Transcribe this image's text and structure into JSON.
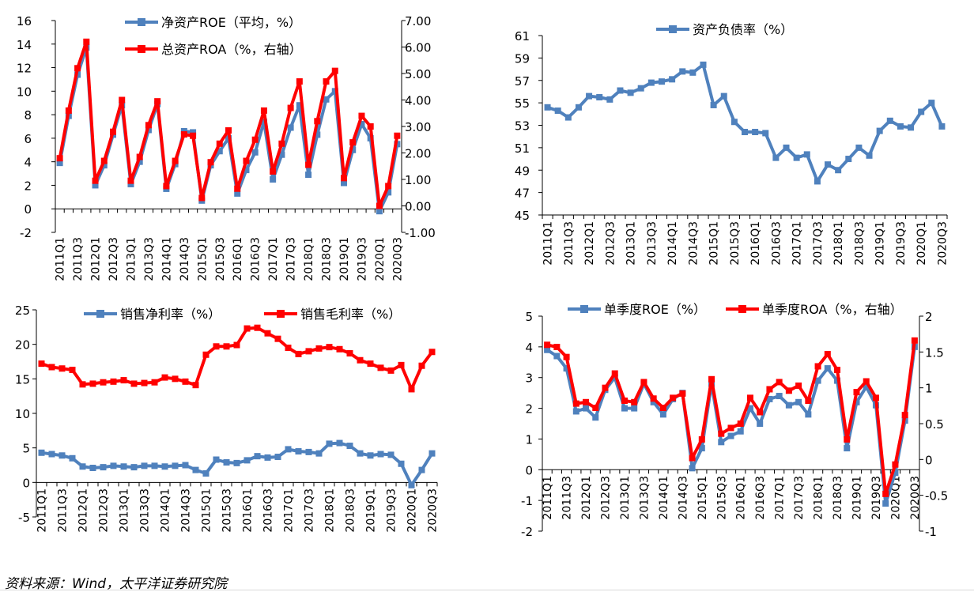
{
  "source_note": "资料来源：Wind，太平洋证券研究院",
  "chart_data": [
    {
      "id": "roe_roa",
      "type": "line",
      "categories": [
        "2011Q1",
        "2011Q2",
        "2011Q3",
        "2011Q4",
        "2012Q1",
        "2012Q2",
        "2012Q3",
        "2012Q4",
        "2013Q1",
        "2013Q2",
        "2013Q3",
        "2013Q4",
        "2014Q1",
        "2014Q2",
        "2014Q3",
        "2014Q4",
        "2015Q1",
        "2015Q2",
        "2015Q3",
        "2015Q4",
        "2016Q1",
        "2016Q2",
        "2016Q3",
        "2016Q4",
        "2017Q1",
        "2017Q2",
        "2017Q3",
        "2017Q4",
        "2018Q1",
        "2018Q2",
        "2018Q3",
        "2018Q4",
        "2019Q1",
        "2019Q2",
        "2019Q3",
        "2019Q4",
        "2020Q1",
        "2020Q2",
        "2020Q3"
      ],
      "tick_labels": [
        "2011Q1",
        "2011Q3",
        "2012Q1",
        "2012Q3",
        "2013Q1",
        "2013Q3",
        "2014Q1",
        "2014Q3",
        "2015Q1",
        "2015Q3",
        "2016Q1",
        "2016Q3",
        "2017Q1",
        "2017Q3",
        "2018Q1",
        "2018Q3",
        "2019Q1",
        "2019Q3",
        "2020Q1",
        "2020Q3"
      ],
      "ylim": [
        -2,
        16
      ],
      "yticks": [
        "-2",
        "0",
        "2",
        "4",
        "6",
        "8",
        "10",
        "12",
        "14",
        "16"
      ],
      "y2lim": [
        -1,
        7
      ],
      "y2ticks": [
        "-1.00",
        "0.00",
        "1.00",
        "2.00",
        "3.00",
        "4.00",
        "5.00",
        "6.00",
        "7.00"
      ],
      "series": [
        {
          "name": "净资产ROE（平均，%）",
          "color": "#4f81bd",
          "axis": "left",
          "values": [
            3.9,
            7.9,
            11.4,
            13.7,
            2.0,
            3.7,
            6.3,
            8.8,
            2.1,
            4.0,
            6.7,
            8.9,
            1.7,
            3.8,
            6.6,
            6.5,
            0.7,
            3.7,
            4.9,
            6.0,
            1.3,
            3.3,
            4.8,
            7.4,
            2.5,
            4.6,
            6.9,
            8.8,
            2.9,
            6.3,
            9.3,
            10.0,
            2.2,
            5.0,
            7.2,
            6.0,
            -0.2,
            1.4,
            5.5
          ]
        },
        {
          "name": "总资产ROA（%，右轴）",
          "color": "#ff0000",
          "axis": "right",
          "values": [
            1.8,
            3.6,
            5.2,
            6.2,
            0.95,
            1.7,
            2.8,
            4.0,
            0.95,
            1.85,
            3.05,
            3.95,
            0.75,
            1.7,
            2.7,
            2.65,
            0.3,
            1.65,
            2.35,
            2.85,
            0.65,
            1.7,
            2.5,
            3.6,
            1.3,
            2.35,
            3.7,
            4.7,
            1.55,
            3.2,
            4.7,
            5.1,
            1.05,
            2.4,
            3.4,
            3.0,
            0.0,
            0.75,
            2.65
          ]
        }
      ]
    },
    {
      "id": "debt_ratio",
      "type": "line",
      "categories": [
        "2011Q1",
        "2011Q2",
        "2011Q3",
        "2011Q4",
        "2012Q1",
        "2012Q2",
        "2012Q3",
        "2012Q4",
        "2013Q1",
        "2013Q2",
        "2013Q3",
        "2013Q4",
        "2014Q1",
        "2014Q2",
        "2014Q3",
        "2014Q4",
        "2015Q1",
        "2015Q2",
        "2015Q3",
        "2015Q4",
        "2016Q1",
        "2016Q2",
        "2016Q3",
        "2016Q4",
        "2017Q1",
        "2017Q2",
        "2017Q3",
        "2017Q4",
        "2018Q1",
        "2018Q2",
        "2018Q3",
        "2018Q4",
        "2019Q1",
        "2019Q2",
        "2019Q3",
        "2019Q4",
        "2020Q1",
        "2020Q2",
        "2020Q3"
      ],
      "tick_labels": [
        "2011Q1",
        "2011Q3",
        "2012Q1",
        "2012Q3",
        "2013Q1",
        "2013Q3",
        "2014Q1",
        "2014Q3",
        "2015Q1",
        "2015Q3",
        "2016Q1",
        "2016Q3",
        "2017Q1",
        "2017Q3",
        "2018Q1",
        "2018Q3",
        "2019Q1",
        "2019Q3",
        "2020Q1",
        "2020Q3"
      ],
      "ylim": [
        45,
        61
      ],
      "yticks": [
        "45",
        "47",
        "49",
        "51",
        "53",
        "55",
        "57",
        "59",
        "61"
      ],
      "series": [
        {
          "name": "资产负债率（%）",
          "color": "#4f81bd",
          "axis": "left",
          "values": [
            54.6,
            54.3,
            53.7,
            54.6,
            55.6,
            55.5,
            55.3,
            56.1,
            55.9,
            56.3,
            56.8,
            56.9,
            57.1,
            57.8,
            57.7,
            58.4,
            54.8,
            55.6,
            53.3,
            52.4,
            52.4,
            52.3,
            50.1,
            51.0,
            50.1,
            50.4,
            48.0,
            49.5,
            49.0,
            50.0,
            51.0,
            50.3,
            52.5,
            53.4,
            52.9,
            52.8,
            54.2,
            55.0,
            52.9
          ]
        }
      ]
    },
    {
      "id": "margins",
      "type": "line",
      "categories": [
        "2011Q1",
        "2011Q2",
        "2011Q3",
        "2011Q4",
        "2012Q1",
        "2012Q2",
        "2012Q3",
        "2012Q4",
        "2013Q1",
        "2013Q2",
        "2013Q3",
        "2013Q4",
        "2014Q1",
        "2014Q2",
        "2014Q3",
        "2014Q4",
        "2015Q1",
        "2015Q2",
        "2015Q3",
        "2015Q4",
        "2016Q1",
        "2016Q2",
        "2016Q3",
        "2016Q4",
        "2017Q1",
        "2017Q2",
        "2017Q3",
        "2017Q4",
        "2018Q1",
        "2018Q2",
        "2018Q3",
        "2018Q4",
        "2019Q1",
        "2019Q2",
        "2019Q3",
        "2019Q4",
        "2020Q1",
        "2020Q2",
        "2020Q3"
      ],
      "tick_labels": [
        "2011Q1",
        "2011Q3",
        "2012Q1",
        "2012Q3",
        "2013Q1",
        "2013Q3",
        "2014Q1",
        "2014Q3",
        "2015Q1",
        "2015Q3",
        "2016Q1",
        "2016Q3",
        "2017Q1",
        "2017Q3",
        "2018Q1",
        "2018Q3",
        "2019Q1",
        "2019Q3",
        "2020Q1",
        "2020Q3"
      ],
      "ylim": [
        -5,
        25
      ],
      "yticks": [
        "-5",
        "0",
        "5",
        "10",
        "15",
        "20",
        "25"
      ],
      "series": [
        {
          "name": "销售净利率（%）",
          "color": "#4f81bd",
          "axis": "left",
          "values": [
            4.3,
            4.1,
            3.9,
            3.5,
            2.3,
            2.1,
            2.2,
            2.4,
            2.3,
            2.2,
            2.4,
            2.4,
            2.3,
            2.4,
            2.5,
            1.8,
            1.3,
            3.3,
            2.9,
            2.8,
            3.2,
            3.8,
            3.6,
            3.7,
            4.8,
            4.5,
            4.4,
            4.2,
            5.6,
            5.7,
            5.3,
            4.2,
            3.9,
            4.1,
            4.0,
            2.7,
            -0.4,
            1.8,
            4.2
          ]
        },
        {
          "name": "销售毛利率（%）",
          "color": "#ff0000",
          "axis": "left",
          "values": [
            17.2,
            16.7,
            16.5,
            16.3,
            14.2,
            14.3,
            14.5,
            14.6,
            14.8,
            14.3,
            14.4,
            14.5,
            15.2,
            15.0,
            14.6,
            14.1,
            18.5,
            19.7,
            19.7,
            19.9,
            22.3,
            22.4,
            21.6,
            20.8,
            19.5,
            18.6,
            19.0,
            19.4,
            19.6,
            19.3,
            18.7,
            17.7,
            17.2,
            16.6,
            16.2,
            17.0,
            13.5,
            16.9,
            18.9
          ]
        }
      ]
    },
    {
      "id": "quarterly_roe_roa",
      "type": "line",
      "categories": [
        "2011Q1",
        "2011Q2",
        "2011Q3",
        "2011Q4",
        "2012Q1",
        "2012Q2",
        "2012Q3",
        "2012Q4",
        "2013Q1",
        "2013Q2",
        "2013Q3",
        "2013Q4",
        "2014Q1",
        "2014Q2",
        "2014Q3",
        "2014Q4",
        "2015Q1",
        "2015Q2",
        "2015Q3",
        "2015Q4",
        "2016Q1",
        "2016Q2",
        "2016Q3",
        "2016Q4",
        "2017Q1",
        "2017Q2",
        "2017Q3",
        "2017Q4",
        "2018Q1",
        "2018Q2",
        "2018Q3",
        "2018Q4",
        "2019Q1",
        "2019Q2",
        "2019Q3",
        "2019Q4",
        "2020Q1",
        "2020Q2",
        "2020Q3"
      ],
      "tick_labels": [
        "2011Q1",
        "2011Q3",
        "2012Q1",
        "2012Q3",
        "2013Q1",
        "2013Q3",
        "2014Q1",
        "2014Q3",
        "2015Q1",
        "2015Q3",
        "2016Q1",
        "2016Q3",
        "2017Q1",
        "2017Q3",
        "2018Q1",
        "2018Q3",
        "2019Q1",
        "2019Q3",
        "2020Q1",
        "2020Q3"
      ],
      "ylim": [
        -2,
        5
      ],
      "yticks": [
        "-2",
        "-1",
        "0",
        "1",
        "2",
        "3",
        "4",
        "5"
      ],
      "y2lim": [
        -1,
        2
      ],
      "y2ticks": [
        "-1",
        "-0.5",
        "0",
        "0.5",
        "1",
        "1.5",
        "2"
      ],
      "series": [
        {
          "name": "单季度ROE（%）",
          "color": "#4f81bd",
          "axis": "left",
          "values": [
            3.9,
            3.7,
            3.3,
            1.9,
            2.0,
            1.7,
            2.6,
            3.0,
            2.0,
            2.0,
            2.8,
            2.2,
            1.8,
            2.3,
            2.5,
            0.05,
            0.7,
            2.8,
            0.9,
            1.1,
            1.25,
            2.0,
            1.5,
            2.3,
            2.4,
            2.1,
            2.2,
            1.8,
            2.9,
            3.3,
            2.9,
            0.7,
            2.2,
            2.7,
            2.1,
            -1.1,
            -0.1,
            1.6,
            4.0
          ]
        },
        {
          "name": "单季度ROA（%，右轴）",
          "color": "#ff0000",
          "axis": "right",
          "values": [
            1.6,
            1.57,
            1.43,
            0.78,
            0.8,
            0.72,
            1.0,
            1.2,
            0.82,
            0.8,
            1.08,
            0.85,
            0.72,
            0.86,
            0.92,
            0.02,
            0.28,
            1.12,
            0.36,
            0.44,
            0.5,
            0.86,
            0.66,
            0.98,
            1.08,
            0.96,
            1.03,
            0.82,
            1.3,
            1.47,
            1.25,
            0.28,
            0.94,
            1.09,
            0.86,
            -0.48,
            -0.07,
            0.62,
            1.66
          ]
        }
      ]
    }
  ]
}
